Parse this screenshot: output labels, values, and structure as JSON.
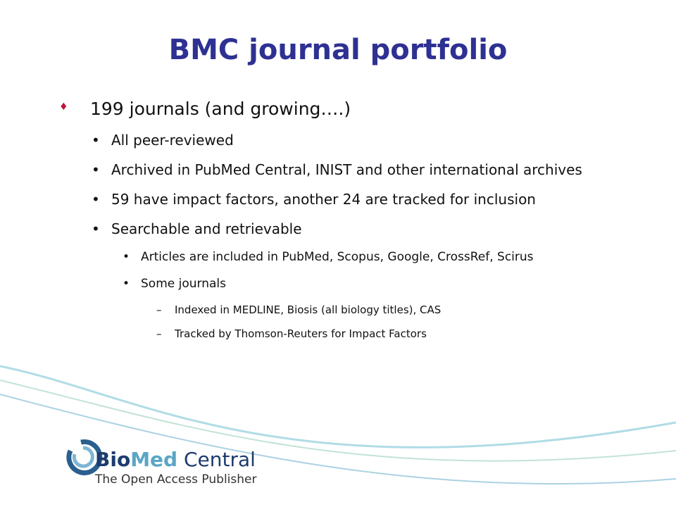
{
  "title": "BMC journal portfolio",
  "bullets": [
    {
      "text": "199 journals (and growing….)",
      "level": 1
    },
    {
      "text": "All peer-reviewed",
      "level": 2
    },
    {
      "text": "Archived in PubMed Central, INIST and other international archives",
      "level": 2
    },
    {
      "text": "59 have impact factors, another 24 are tracked for inclusion",
      "level": 2
    },
    {
      "text": "Searchable and retrievable",
      "level": 2
    },
    {
      "text": "Articles are included in PubMed, Scopus, Google, CrossRef, Scirus",
      "level": 3
    },
    {
      "text": "Some journals",
      "level": 3
    },
    {
      "text": "Indexed in MEDLINE, Biosis (all biology titles), CAS",
      "level": 4
    },
    {
      "text": "Tracked by Thomson-Reuters for Impact Factors",
      "level": 4
    }
  ],
  "logo": {
    "bio": "Bio",
    "med": "Med",
    "central": "Central",
    "tagline": "The Open Access Publisher"
  }
}
